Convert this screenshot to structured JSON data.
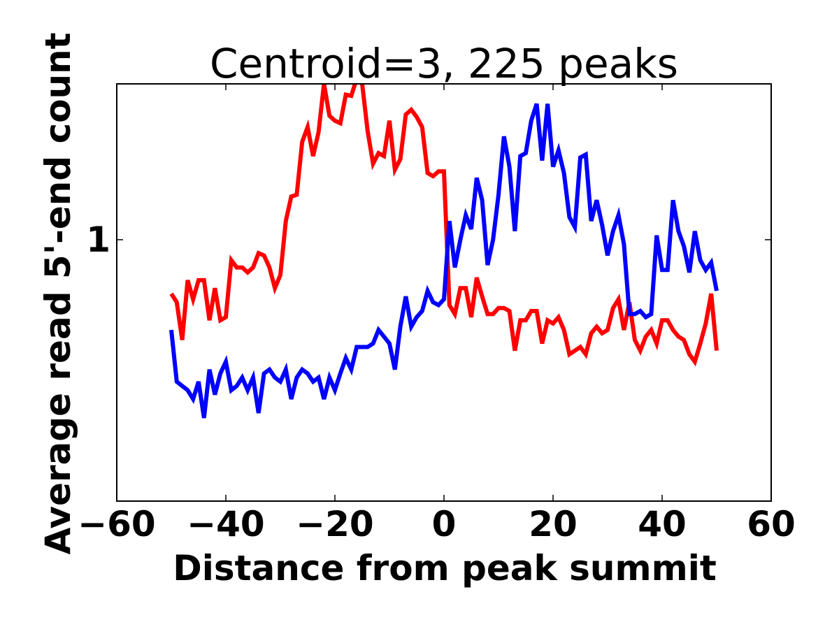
{
  "chart_data": {
    "type": "line",
    "title": "Centroid=3, 225 peaks",
    "xlabel": "Distance from peak summit",
    "ylabel": "Average read 5'-end count",
    "xlim": [
      -60,
      60
    ],
    "ylim": [
      0.3,
      2.05
    ],
    "yscale": "log",
    "xticks": [
      -60,
      -40,
      -20,
      0,
      20,
      40,
      60
    ],
    "xtick_labels": [
      "−60",
      "−40",
      "−20",
      "0",
      "20",
      "40",
      "60"
    ],
    "yticks": [
      1
    ],
    "ytick_labels": [
      "1"
    ],
    "grid": false,
    "legend": "none",
    "x": [
      -50,
      -49,
      -48,
      -47,
      -46,
      -45,
      -44,
      -43,
      -42,
      -41,
      -40,
      -39,
      -38,
      -37,
      -36,
      -35,
      -34,
      -33,
      -32,
      -31,
      -30,
      -29,
      -28,
      -27,
      -26,
      -25,
      -24,
      -23,
      -22,
      -21,
      -20,
      -19,
      -18,
      -17,
      -16,
      -15,
      -14,
      -13,
      -12,
      -11,
      -10,
      -9,
      -8,
      -7,
      -6,
      -5,
      -4,
      -3,
      -2,
      -1,
      0,
      1,
      2,
      3,
      4,
      5,
      6,
      7,
      8,
      9,
      10,
      11,
      12,
      13,
      14,
      15,
      16,
      17,
      18,
      19,
      20,
      21,
      22,
      23,
      24,
      25,
      26,
      27,
      28,
      29,
      30,
      31,
      32,
      33,
      34,
      35,
      36,
      37,
      38,
      39,
      40,
      41,
      42,
      43,
      44,
      45,
      46,
      47,
      48,
      49,
      50
    ],
    "series": [
      {
        "color": "#ff0000",
        "values": [
          0.78,
          0.75,
          0.63,
          0.83,
          0.76,
          0.83,
          0.83,
          0.69,
          0.8,
          0.69,
          0.7,
          0.91,
          0.88,
          0.88,
          0.86,
          0.88,
          0.94,
          0.93,
          0.88,
          0.8,
          0.85,
          1.09,
          1.22,
          1.23,
          1.57,
          1.68,
          1.47,
          1.64,
          2.05,
          1.77,
          1.73,
          1.71,
          1.95,
          1.94,
          2.1,
          2.05,
          1.65,
          1.42,
          1.49,
          1.47,
          1.73,
          1.38,
          1.45,
          1.78,
          1.82,
          1.76,
          1.68,
          1.36,
          1.34,
          1.37,
          1.37,
          0.74,
          0.71,
          0.8,
          0.8,
          0.7,
          0.84,
          0.77,
          0.71,
          0.71,
          0.73,
          0.73,
          0.72,
          0.6,
          0.69,
          0.69,
          0.72,
          0.72,
          0.62,
          0.69,
          0.68,
          0.7,
          0.66,
          0.59,
          0.6,
          0.61,
          0.59,
          0.65,
          0.67,
          0.65,
          0.66,
          0.73,
          0.76,
          0.66,
          0.75,
          0.63,
          0.6,
          0.64,
          0.66,
          0.62,
          0.69,
          0.69,
          0.66,
          0.64,
          0.63,
          0.59,
          0.57,
          0.62,
          0.68,
          0.78,
          0.6
        ]
      },
      {
        "color": "#0000ff",
        "values": [
          0.66,
          0.52,
          0.51,
          0.5,
          0.48,
          0.52,
          0.44,
          0.55,
          0.49,
          0.54,
          0.57,
          0.5,
          0.51,
          0.53,
          0.5,
          0.53,
          0.45,
          0.54,
          0.55,
          0.53,
          0.52,
          0.55,
          0.48,
          0.53,
          0.55,
          0.54,
          0.52,
          0.53,
          0.48,
          0.53,
          0.5,
          0.54,
          0.58,
          0.55,
          0.61,
          0.61,
          0.61,
          0.62,
          0.66,
          0.64,
          0.62,
          0.55,
          0.67,
          0.77,
          0.67,
          0.7,
          0.72,
          0.79,
          0.75,
          0.74,
          0.76,
          1.09,
          0.88,
          1.0,
          1.12,
          1.05,
          1.33,
          1.2,
          0.89,
          1.0,
          1.23,
          1.61,
          1.4,
          1.04,
          1.47,
          1.49,
          1.73,
          1.87,
          1.44,
          1.87,
          1.4,
          1.51,
          1.36,
          1.11,
          1.06,
          1.46,
          1.48,
          1.09,
          1.2,
          1.07,
          0.93,
          1.04,
          1.12,
          0.98,
          0.71,
          0.71,
          0.72,
          0.7,
          0.71,
          1.02,
          0.87,
          0.87,
          1.2,
          1.04,
          0.97,
          0.86,
          1.04,
          0.91,
          0.87,
          0.9,
          0.79
        ]
      }
    ]
  }
}
